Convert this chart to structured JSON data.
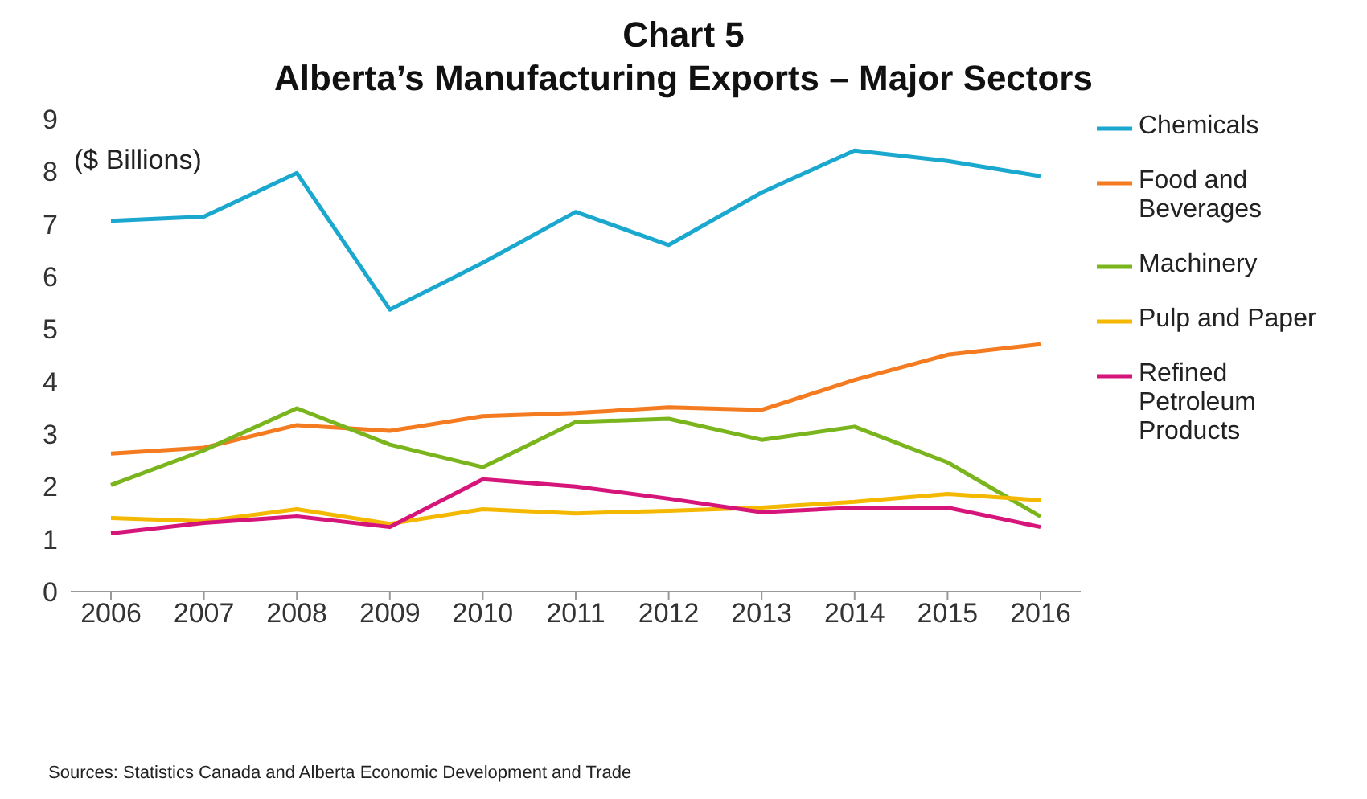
{
  "chart_data": {
    "type": "line",
    "title": "Chart 5",
    "subtitle": "Alberta’s Manufacturing Exports – Major Sectors",
    "ylabel": "($ Billions)",
    "categories": [
      "2006",
      "2007",
      "2008",
      "2009",
      "2010",
      "2011",
      "2012",
      "2013",
      "2014",
      "2015",
      "2016"
    ],
    "series": [
      {
        "name": "Chemicals",
        "color": "#1ba8cf",
        "values": [
          7.06,
          7.14,
          7.97,
          5.37,
          6.26,
          7.23,
          6.6,
          7.6,
          8.4,
          8.2,
          7.91
        ]
      },
      {
        "name": "Food and Beverages",
        "color": "#f47b20",
        "values": [
          2.63,
          2.74,
          3.17,
          3.06,
          3.34,
          3.4,
          3.51,
          3.46,
          4.03,
          4.51,
          4.71
        ]
      },
      {
        "name": "Machinery",
        "color": "#7ab51d",
        "values": [
          2.03,
          2.69,
          3.49,
          2.8,
          2.37,
          3.23,
          3.29,
          2.89,
          3.14,
          2.46,
          1.43
        ]
      },
      {
        "name": "Pulp and Paper",
        "color": "#f5b800",
        "values": [
          1.4,
          1.34,
          1.57,
          1.29,
          1.57,
          1.49,
          1.54,
          1.6,
          1.71,
          1.86,
          1.74
        ]
      },
      {
        "name": "Refined Petroleum Products",
        "color": "#d6157a",
        "values": [
          1.11,
          1.31,
          1.43,
          1.23,
          2.14,
          2.0,
          1.77,
          1.51,
          1.6,
          1.6,
          1.23
        ]
      }
    ],
    "ylim": [
      0,
      9
    ],
    "yticks": [
      0,
      1,
      2,
      3,
      4,
      5,
      6,
      7,
      8,
      9
    ],
    "grid": false,
    "legend": "right",
    "marker": "none",
    "line_style": "solid",
    "annotations": [
      "Sources:  Statistics Canada and Alberta Economic Development  and Trade"
    ]
  }
}
